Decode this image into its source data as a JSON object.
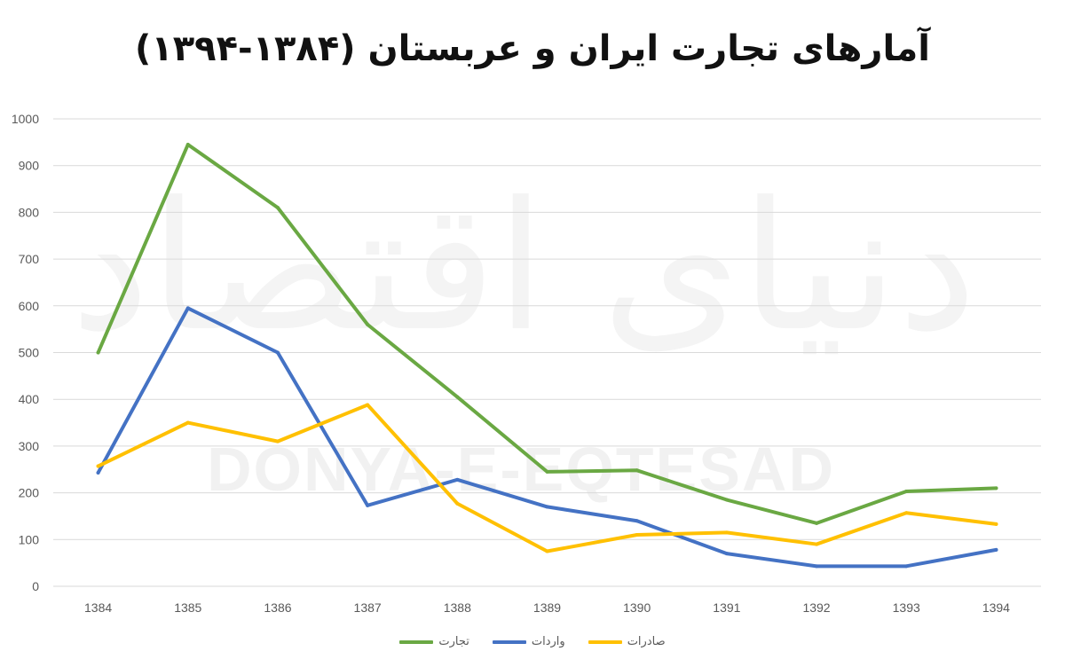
{
  "title": "آمارهای تجارت ایران و عربستان (۱۳۸۴-۱۳۹۴)",
  "watermark": {
    "text": "DONYA-E-EQTESAD",
    "logo": "دنیای اقتصاد"
  },
  "chart_data": {
    "type": "line",
    "title": "آمارهای تجارت ایران و عربستان (۱۳۸۴-۱۳۹۴)",
    "categories": [
      "1384",
      "1385",
      "1386",
      "1387",
      "1388",
      "1389",
      "1390",
      "1391",
      "1392",
      "1393",
      "1394"
    ],
    "ylim": [
      0,
      1000
    ],
    "yticks": [
      0,
      100,
      200,
      300,
      400,
      500,
      600,
      700,
      800,
      900,
      1000
    ],
    "grid": true,
    "legend_position": "bottom",
    "series": [
      {
        "name": "تجارت",
        "color": "#6aa843",
        "values": [
          500,
          945,
          810,
          560,
          405,
          245,
          248,
          185,
          135,
          203,
          210
        ]
      },
      {
        "name": "واردات",
        "color": "#4472c4",
        "values": [
          243,
          595,
          500,
          173,
          228,
          170,
          140,
          70,
          43,
          43,
          78
        ]
      },
      {
        "name": "صادرات",
        "color": "#ffc000",
        "values": [
          257,
          350,
          310,
          388,
          177,
          75,
          110,
          115,
          90,
          157,
          133
        ]
      }
    ]
  }
}
